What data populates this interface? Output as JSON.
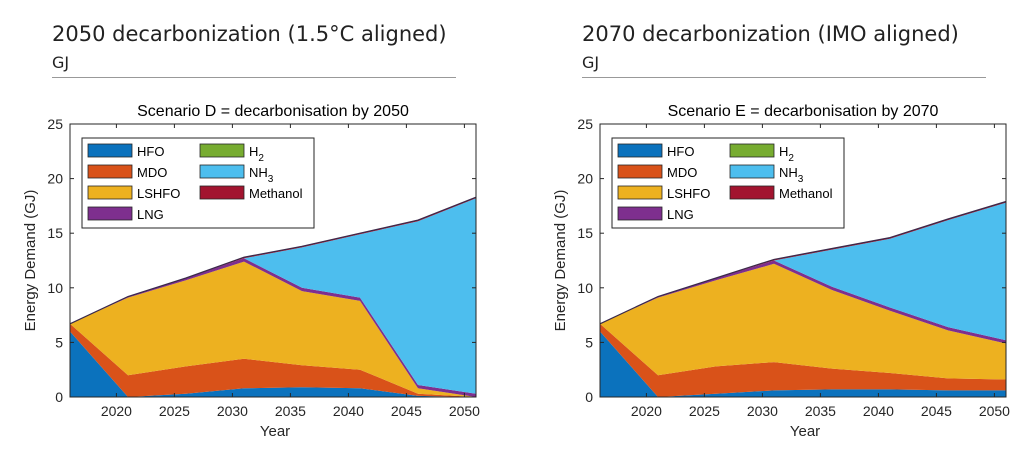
{
  "panels": [
    {
      "title": "2050 decarbonization (1.5°C aligned)",
      "unit": "GJ"
    },
    {
      "title": "2070 decarbonization (IMO aligned)",
      "unit": "GJ"
    }
  ],
  "colors": {
    "HFO": "#0b72bd",
    "MDO": "#d95219",
    "LSHFO": "#edb120",
    "LNG": "#7e2f8e",
    "H2": "#77ac30",
    "NH3": "#4dbeee",
    "Methanol": "#a2142f"
  },
  "chart_data": [
    {
      "type": "area",
      "title": "Scenario D = decarbonisation by 2050",
      "xlabel": "Year",
      "ylabel": "Energy Demand (GJ)",
      "xlim": [
        2016,
        2051
      ],
      "ylim": [
        0,
        25
      ],
      "xticks": [
        "2020",
        "2025",
        "2030",
        "2035",
        "2040",
        "2045",
        "2050"
      ],
      "yticks": [
        "0",
        "5",
        "10",
        "15",
        "20",
        "25"
      ],
      "legend_position": "top-left",
      "legend": [
        {
          "label": "HFO",
          "key": "HFO"
        },
        {
          "label": "MDO",
          "key": "MDO"
        },
        {
          "label": "LSHFO",
          "key": "LSHFO"
        },
        {
          "label": "LNG",
          "key": "LNG"
        },
        {
          "label": "H",
          "sub": "2",
          "key": "H2"
        },
        {
          "label": "NH",
          "sub": "3",
          "key": "NH3"
        },
        {
          "label": "Methanol",
          "key": "Methanol"
        }
      ],
      "x": [
        2016,
        2021,
        2026,
        2031,
        2036,
        2041,
        2046,
        2051
      ],
      "series": [
        {
          "name": "HFO",
          "values": [
            6.0,
            0.0,
            0.3,
            0.8,
            0.9,
            0.8,
            0.1,
            0.0
          ]
        },
        {
          "name": "MDO",
          "values": [
            0.7,
            2.0,
            2.5,
            2.7,
            2.0,
            1.7,
            0.2,
            0.0
          ]
        },
        {
          "name": "LSHFO",
          "values": [
            0.0,
            7.1,
            7.9,
            8.9,
            6.8,
            6.3,
            0.5,
            0.0
          ]
        },
        {
          "name": "LNG",
          "values": [
            0.0,
            0.1,
            0.2,
            0.3,
            0.3,
            0.3,
            0.3,
            0.3
          ]
        },
        {
          "name": "H2",
          "values": [
            0.0,
            0.0,
            0.0,
            0.0,
            0.0,
            0.0,
            0.0,
            0.0
          ]
        },
        {
          "name": "NH3",
          "values": [
            0.0,
            0.0,
            0.0,
            0.0,
            3.7,
            5.8,
            15.0,
            17.9
          ]
        },
        {
          "name": "Methanol",
          "values": [
            0.0,
            0.0,
            0.0,
            0.1,
            0.1,
            0.1,
            0.1,
            0.1
          ]
        }
      ]
    },
    {
      "type": "area",
      "title": "Scenario E = decarbonisation by 2070",
      "xlabel": "Year",
      "ylabel": "Energy Demand (GJ)",
      "xlim": [
        2016,
        2051
      ],
      "ylim": [
        0,
        25
      ],
      "xticks": [
        "2020",
        "2025",
        "2030",
        "2035",
        "2040",
        "2045",
        "2050"
      ],
      "yticks": [
        "0",
        "5",
        "10",
        "15",
        "20",
        "25"
      ],
      "legend_position": "top-left",
      "legend": [
        {
          "label": "HFO",
          "key": "HFO"
        },
        {
          "label": "MDO",
          "key": "MDO"
        },
        {
          "label": "LSHFO",
          "key": "LSHFO"
        },
        {
          "label": "LNG",
          "key": "LNG"
        },
        {
          "label": "H",
          "sub": "2",
          "key": "H2"
        },
        {
          "label": "NH",
          "sub": "3",
          "key": "NH3"
        },
        {
          "label": "Methanol",
          "key": "Methanol"
        }
      ],
      "x": [
        2016,
        2021,
        2026,
        2031,
        2036,
        2041,
        2046,
        2051
      ],
      "series": [
        {
          "name": "HFO",
          "values": [
            6.0,
            0.0,
            0.3,
            0.6,
            0.7,
            0.7,
            0.6,
            0.6
          ]
        },
        {
          "name": "MDO",
          "values": [
            0.7,
            2.0,
            2.5,
            2.6,
            1.9,
            1.5,
            1.1,
            1.0
          ]
        },
        {
          "name": "LSHFO",
          "values": [
            0.0,
            7.1,
            7.9,
            9.0,
            7.2,
            5.7,
            4.4,
            3.3
          ]
        },
        {
          "name": "LNG",
          "values": [
            0.0,
            0.1,
            0.2,
            0.3,
            0.3,
            0.3,
            0.3,
            0.3
          ]
        },
        {
          "name": "H2",
          "values": [
            0.0,
            0.0,
            0.0,
            0.0,
            0.0,
            0.0,
            0.0,
            0.0
          ]
        },
        {
          "name": "NH3",
          "values": [
            0.0,
            0.0,
            0.0,
            0.0,
            3.4,
            6.3,
            9.8,
            12.6
          ]
        },
        {
          "name": "Methanol",
          "values": [
            0.0,
            0.0,
            0.0,
            0.1,
            0.1,
            0.1,
            0.1,
            0.1
          ]
        }
      ]
    }
  ]
}
